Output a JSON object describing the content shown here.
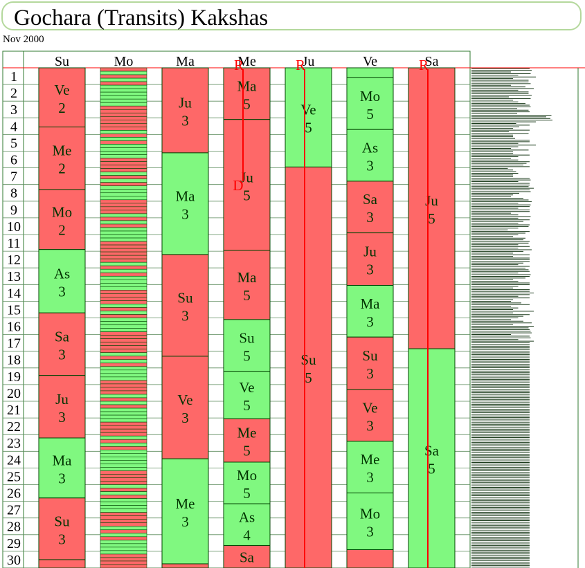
{
  "page": {
    "title": "Gochara (Transits) Kakshas",
    "subtitle": "Nov 2000"
  },
  "colors": {
    "favorable": "#80f880",
    "unfavorable": "#fe6868",
    "line": "#004400",
    "grid": "#2f7a2f",
    "retro": "#ff0000"
  },
  "chart_data": {
    "type": "table",
    "days": [
      "1",
      "2",
      "3",
      "4",
      "5",
      "6",
      "7",
      "8",
      "9",
      "10",
      "11",
      "12",
      "13",
      "14",
      "15",
      "16",
      "17",
      "18",
      "19",
      "20",
      "21",
      "22",
      "23",
      "24",
      "25",
      "26",
      "27",
      "28",
      "29",
      "30"
    ],
    "planets": [
      {
        "label": "Su",
        "segments": [
          {
            "start": 0.0,
            "end": 3.55,
            "lord": "Ve",
            "points": "2",
            "good": false
          },
          {
            "start": 3.55,
            "end": 7.3,
            "lord": "Me",
            "points": "2",
            "good": false
          },
          {
            "start": 7.3,
            "end": 10.9,
            "lord": "Mo",
            "points": "2",
            "good": false
          },
          {
            "start": 10.9,
            "end": 14.7,
            "lord": "As",
            "points": "3",
            "good": true
          },
          {
            "start": 14.7,
            "end": 18.45,
            "lord": "Sa",
            "points": "3",
            "good": false
          },
          {
            "start": 18.45,
            "end": 22.2,
            "lord": "Ju",
            "points": "3",
            "good": false
          },
          {
            "start": 22.2,
            "end": 25.8,
            "lord": "Ma",
            "points": "3",
            "good": true
          },
          {
            "start": 25.8,
            "end": 29.5,
            "lord": "Su",
            "points": "3",
            "good": false
          },
          {
            "start": 29.5,
            "end": 30.0,
            "lord": "",
            "points": "",
            "good": false
          }
        ]
      },
      {
        "label": "Mo",
        "moon": true
      },
      {
        "label": "Ma",
        "segments": [
          {
            "start": 0.0,
            "end": 5.1,
            "lord": "Ju",
            "points": "3",
            "good": false
          },
          {
            "start": 5.1,
            "end": 11.2,
            "lord": "Ma",
            "points": "3",
            "good": true
          },
          {
            "start": 11.2,
            "end": 17.3,
            "lord": "Su",
            "points": "3",
            "good": false
          },
          {
            "start": 17.3,
            "end": 23.45,
            "lord": "Ve",
            "points": "3",
            "good": false
          },
          {
            "start": 23.45,
            "end": 29.75,
            "lord": "Me",
            "points": "3",
            "good": true
          },
          {
            "start": 29.75,
            "end": 30.0,
            "lord": "",
            "points": "",
            "good": false
          }
        ]
      },
      {
        "label": "Me",
        "retro": "R",
        "direct": "D",
        "segments": [
          {
            "start": 0.0,
            "end": 3.1,
            "lord": "Ma",
            "points": "5",
            "good": false
          },
          {
            "start": 3.1,
            "end": 10.95,
            "lord": "Ju",
            "points": "5",
            "good": false
          },
          {
            "start": 10.95,
            "end": 15.1,
            "lord": "Ma",
            "points": "5",
            "good": false
          },
          {
            "start": 15.1,
            "end": 18.2,
            "lord": "Su",
            "points": "5",
            "good": true
          },
          {
            "start": 18.2,
            "end": 21.05,
            "lord": "Ve",
            "points": "5",
            "good": true
          },
          {
            "start": 21.05,
            "end": 23.65,
            "lord": "Me",
            "points": "5",
            "good": false
          },
          {
            "start": 23.65,
            "end": 26.15,
            "lord": "Mo",
            "points": "5",
            "good": true
          },
          {
            "start": 26.15,
            "end": 28.65,
            "lord": "As",
            "points": "4",
            "good": true
          },
          {
            "start": 28.65,
            "end": 30.0,
            "lord": "Sa",
            "points": "",
            "good": false
          }
        ]
      },
      {
        "label": "Ju",
        "retro": "R",
        "segments": [
          {
            "start": 0.0,
            "end": 5.95,
            "lord": "Ve",
            "points": "5",
            "good": true
          },
          {
            "start": 5.95,
            "end": 30.0,
            "lord": "Su",
            "points": "5",
            "good": false
          }
        ]
      },
      {
        "label": "Ve",
        "segments": [
          {
            "start": 0.0,
            "end": 0.6,
            "lord": "",
            "points": "",
            "good": true
          },
          {
            "start": 0.6,
            "end": 3.7,
            "lord": "Mo",
            "points": "5",
            "good": true
          },
          {
            "start": 3.7,
            "end": 6.8,
            "lord": "As",
            "points": "3",
            "good": true
          },
          {
            "start": 6.8,
            "end": 9.9,
            "lord": "Sa",
            "points": "3",
            "good": false
          },
          {
            "start": 9.9,
            "end": 13.05,
            "lord": "Ju",
            "points": "3",
            "good": false
          },
          {
            "start": 13.05,
            "end": 16.15,
            "lord": "Ma",
            "points": "3",
            "good": true
          },
          {
            "start": 16.15,
            "end": 19.3,
            "lord": "Su",
            "points": "3",
            "good": false
          },
          {
            "start": 19.3,
            "end": 22.4,
            "lord": "Ve",
            "points": "3",
            "good": false
          },
          {
            "start": 22.4,
            "end": 25.5,
            "lord": "Me",
            "points": "3",
            "good": true
          },
          {
            "start": 25.5,
            "end": 28.9,
            "lord": "Mo",
            "points": "3",
            "good": true
          },
          {
            "start": 28.9,
            "end": 30.0,
            "lord": "",
            "points": "",
            "good": false
          }
        ]
      },
      {
        "label": "Sa",
        "retro": "R",
        "segments": [
          {
            "start": 0.0,
            "end": 16.85,
            "lord": "Ju",
            "points": "5",
            "good": false
          },
          {
            "start": 16.85,
            "end": 30.0,
            "lord": "Sa",
            "points": "5",
            "good": true
          }
        ]
      }
    ],
    "moon_stripes": [
      0,
      1,
      0,
      1,
      0,
      1,
      1,
      1,
      1,
      1,
      1,
      0,
      0,
      0,
      0,
      0,
      0,
      0,
      1,
      0,
      1,
      0,
      1,
      1,
      1,
      1,
      0,
      0,
      0,
      0,
      1,
      0,
      1,
      0,
      1,
      1,
      1,
      1,
      0,
      0,
      0,
      0,
      1,
      0,
      1,
      0,
      1,
      1,
      1,
      1,
      0,
      0,
      0,
      0,
      0,
      0,
      1,
      0,
      1,
      0,
      1,
      1,
      1,
      1,
      0,
      0,
      0,
      0,
      1,
      0,
      1,
      0,
      1,
      1,
      1,
      1,
      0,
      0,
      0,
      0,
      0,
      0,
      1,
      0,
      1,
      0,
      1,
      1,
      1,
      1,
      0,
      0,
      0,
      0,
      1,
      0,
      1,
      0,
      1,
      1,
      1,
      1,
      0,
      0,
      0,
      0,
      1,
      0,
      1,
      0,
      1,
      1,
      1,
      1,
      1,
      1,
      0,
      0,
      0,
      0,
      1,
      0,
      1,
      0,
      1,
      1,
      1,
      1,
      0,
      0,
      0,
      0,
      1,
      0,
      1,
      0,
      1,
      1,
      1,
      1,
      0,
      0,
      0,
      0
    ],
    "strength_bars": [
      56,
      58,
      38,
      57,
      45,
      62,
      40,
      55,
      55,
      57,
      38,
      52,
      60,
      45,
      55,
      55,
      58,
      36,
      57,
      40,
      45,
      52,
      56,
      57,
      44,
      55,
      56,
      44,
      77,
      72,
      76,
      78,
      62,
      43,
      56,
      46,
      40,
      56,
      36,
      55,
      40,
      40,
      42,
      56,
      56,
      45,
      62,
      45,
      38,
      55,
      40,
      40,
      56,
      45,
      38,
      45,
      56,
      53,
      50,
      56,
      35,
      40,
      43,
      45,
      40,
      40,
      56,
      57,
      45,
      56,
      56,
      55,
      60,
      56,
      57,
      46,
      40,
      38,
      50,
      55,
      58,
      45,
      57,
      56,
      45,
      56,
      56,
      38,
      45,
      57,
      45,
      56,
      50,
      45,
      56,
      55,
      45,
      35,
      56,
      52,
      45,
      40,
      52,
      50,
      56,
      55,
      45,
      56,
      45,
      58,
      50,
      40,
      56,
      40,
      56,
      56,
      56,
      50,
      45,
      56,
      52,
      55,
      56,
      45,
      57,
      56,
      52,
      40,
      45,
      56,
      56,
      45,
      40,
      56,
      56,
      60,
      56,
      45,
      56,
      40,
      38,
      48,
      56,
      38,
      45,
      40,
      60,
      40,
      56,
      50,
      45,
      38,
      50,
      58,
      40,
      60,
      55,
      56,
      57,
      58,
      38,
      56,
      57,
      45,
      60,
      56,
      56,
      56,
      56,
      56,
      56,
      56,
      56,
      56,
      56,
      56,
      56,
      56,
      56,
      56,
      56,
      56,
      56,
      56,
      56,
      56,
      56,
      56,
      56,
      56,
      56,
      56,
      56,
      56,
      56,
      56,
      56,
      56,
      56,
      56,
      56,
      56,
      56,
      56,
      56,
      56,
      56,
      56,
      56,
      56,
      56,
      56,
      56,
      56,
      56,
      56,
      56,
      56,
      56,
      56,
      56,
      56,
      56,
      56,
      56,
      56,
      56,
      56,
      56,
      56,
      56,
      56,
      56,
      56,
      56,
      56,
      56,
      56,
      56,
      56,
      56,
      56,
      56,
      56,
      56,
      56,
      56,
      56,
      56,
      56,
      56,
      56,
      56,
      56,
      56,
      56,
      56,
      56,
      56,
      56,
      56,
      56,
      56,
      56,
      56,
      56,
      56,
      56,
      56,
      56,
      56,
      56,
      56,
      56,
      56,
      56,
      56,
      56,
      56,
      56,
      56,
      56,
      56,
      56,
      56,
      56,
      56,
      56,
      56,
      56,
      56,
      56,
      56,
      56,
      56,
      56,
      56,
      56,
      56,
      56,
      56
    ]
  }
}
